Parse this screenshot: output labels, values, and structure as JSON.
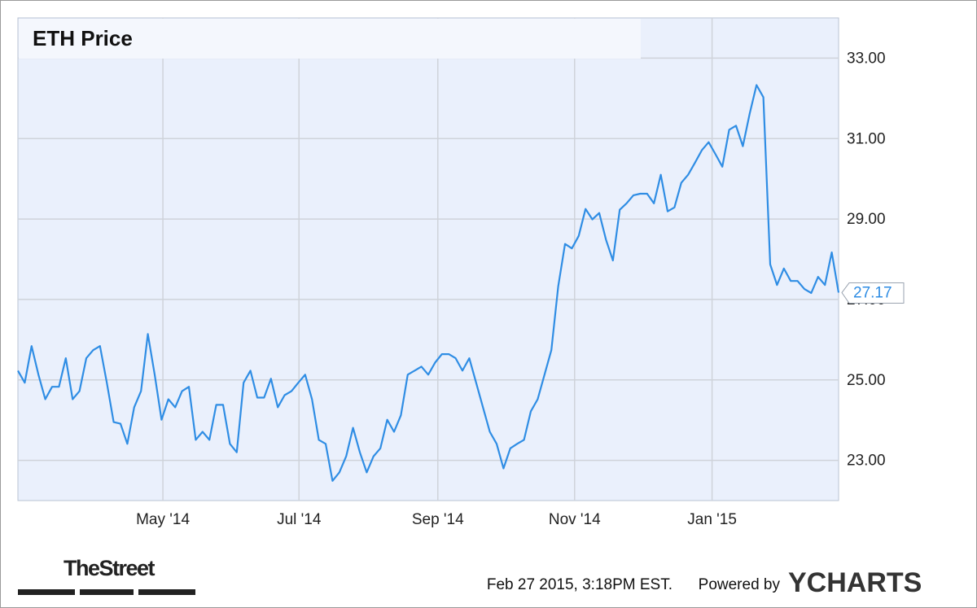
{
  "chart_data": {
    "type": "line",
    "title": "ETH Price",
    "values": [
      25.23,
      24.93,
      25.84,
      25.13,
      24.52,
      24.83,
      24.83,
      25.54,
      24.52,
      24.72,
      25.54,
      25.74,
      25.84,
      24.93,
      23.95,
      23.91,
      23.41,
      24.32,
      24.72,
      26.14,
      25.13,
      24.01,
      24.52,
      24.32,
      24.72,
      24.83,
      23.51,
      23.71,
      23.51,
      24.38,
      24.38,
      23.41,
      23.2,
      24.93,
      25.23,
      24.56,
      24.56,
      25.03,
      24.32,
      24.62,
      24.72,
      24.93,
      25.13,
      24.52,
      23.51,
      23.41,
      22.49,
      22.7,
      23.1,
      23.81,
      23.2,
      22.7,
      23.1,
      23.3,
      24.01,
      23.71,
      24.12,
      25.13,
      25.23,
      25.33,
      25.13,
      25.43,
      25.64,
      25.64,
      25.54,
      25.23,
      25.54,
      24.93,
      24.32,
      23.71,
      23.41,
      22.8,
      23.3,
      23.41,
      23.51,
      24.22,
      24.52,
      25.13,
      25.74,
      27.32,
      28.38,
      28.27,
      28.58,
      29.25,
      28.99,
      29.15,
      28.48,
      27.97,
      29.23,
      29.39,
      29.59,
      29.63,
      29.63,
      29.39,
      30.1,
      29.19,
      29.29,
      29.9,
      30.1,
      30.4,
      30.71,
      30.91,
      30.61,
      30.3,
      31.22,
      31.32,
      30.81,
      31.62,
      32.33,
      32.03,
      27.87,
      27.36,
      27.77,
      27.46,
      27.46,
      27.26,
      27.16,
      27.56,
      27.36,
      28.17,
      27.17
    ],
    "color": "#2f8de4",
    "xlim": [
      0,
      120
    ],
    "xticks": [
      {
        "value": 21.2,
        "label": "May '14"
      },
      {
        "value": 41.1,
        "label": "Jul '14"
      },
      {
        "value": 61.4,
        "label": "Sep '14"
      },
      {
        "value": 81.4,
        "label": "Nov '14"
      },
      {
        "value": 101.5,
        "label": "Jan '15"
      }
    ],
    "ylim": [
      22,
      34
    ],
    "yticks": [
      {
        "value": 23,
        "label": "23.00"
      },
      {
        "value": 25,
        "label": "25.00"
      },
      {
        "value": 27,
        "label": "27.00"
      },
      {
        "value": 29,
        "label": "29.00"
      },
      {
        "value": 31,
        "label": "31.00"
      },
      {
        "value": 33,
        "label": "33.00"
      }
    ],
    "grid": true,
    "source": "TheStreet",
    "timestamp": "Feb 27 2015, 3:18PM EST.",
    "credit": "Powered by",
    "brand": "YCHARTS"
  }
}
